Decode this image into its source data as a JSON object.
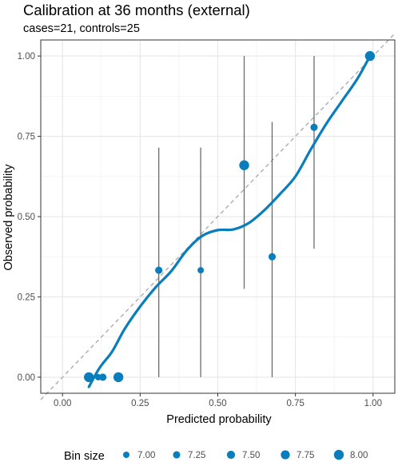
{
  "title": "Calibration at 36 months (external)",
  "subtitle": "cases=21, controls=25",
  "colors": {
    "accent": "#0a7dbd",
    "errorbar": "#6b6b6b",
    "reference": "#a8a8a8",
    "grid_major": "#e6e6e6",
    "grid_minor": "#f2f2f2",
    "panel_border": "#333333"
  },
  "chart_data": {
    "type": "scatter",
    "xlabel": "Predicted probability",
    "ylabel": "Observed probability",
    "xlim": [
      -0.07,
      1.07
    ],
    "ylim": [
      -0.05,
      1.05
    ],
    "x_ticks": [
      0.0,
      0.25,
      0.5,
      0.75,
      1.0
    ],
    "x_tick_labels": [
      "0.00",
      "0.25",
      "0.50",
      "0.75",
      "1.00"
    ],
    "y_ticks": [
      0.0,
      0.25,
      0.5,
      0.75,
      1.0
    ],
    "y_tick_labels": [
      "0.00",
      "0.25",
      "0.50",
      "0.75",
      "1.00"
    ],
    "grid": true,
    "reference_line": {
      "style": "dashed",
      "from": [
        -0.07,
        -0.07
      ],
      "to": [
        1.07,
        1.07
      ]
    },
    "points": [
      {
        "x": 0.085,
        "y": 0.0,
        "size": 8.0
      },
      {
        "x": 0.115,
        "y": 0.0,
        "size": 7.0
      },
      {
        "x": 0.13,
        "y": 0.0,
        "size": 7.25
      },
      {
        "x": 0.18,
        "y": 0.0,
        "size": 8.0
      },
      {
        "x": 0.31,
        "y": 0.333,
        "size": 7.25
      },
      {
        "x": 0.445,
        "y": 0.333,
        "size": 7.0
      },
      {
        "x": 0.585,
        "y": 0.66,
        "size": 8.0
      },
      {
        "x": 0.675,
        "y": 0.375,
        "size": 7.25
      },
      {
        "x": 0.81,
        "y": 0.778,
        "size": 7.25
      },
      {
        "x": 0.99,
        "y": 1.0,
        "size": 8.0
      }
    ],
    "error_bars": [
      {
        "x": 0.31,
        "low": 0.0,
        "high": 0.715
      },
      {
        "x": 0.445,
        "low": 0.0,
        "high": 0.715
      },
      {
        "x": 0.585,
        "low": 0.275,
        "high": 1.0
      },
      {
        "x": 0.675,
        "low": 0.0,
        "high": 0.795
      },
      {
        "x": 0.81,
        "low": 0.4,
        "high": 1.0
      }
    ],
    "smooth_curve": [
      [
        0.085,
        -0.03
      ],
      [
        0.12,
        0.03
      ],
      [
        0.16,
        0.08
      ],
      [
        0.2,
        0.15
      ],
      [
        0.25,
        0.22
      ],
      [
        0.3,
        0.28
      ],
      [
        0.35,
        0.33
      ],
      [
        0.4,
        0.395
      ],
      [
        0.45,
        0.44
      ],
      [
        0.5,
        0.458
      ],
      [
        0.55,
        0.46
      ],
      [
        0.6,
        0.48
      ],
      [
        0.65,
        0.52
      ],
      [
        0.7,
        0.57
      ],
      [
        0.75,
        0.625
      ],
      [
        0.8,
        0.71
      ],
      [
        0.85,
        0.79
      ],
      [
        0.9,
        0.86
      ],
      [
        0.95,
        0.93
      ],
      [
        0.99,
        1.0
      ]
    ],
    "legend": {
      "title": "Bin size",
      "position": "bottom",
      "entries": [
        {
          "label": "7.00",
          "size": 7.0
        },
        {
          "label": "7.25",
          "size": 7.25
        },
        {
          "label": "7.50",
          "size": 7.5
        },
        {
          "label": "7.75",
          "size": 7.75
        },
        {
          "label": "8.00",
          "size": 8.0
        }
      ]
    }
  }
}
